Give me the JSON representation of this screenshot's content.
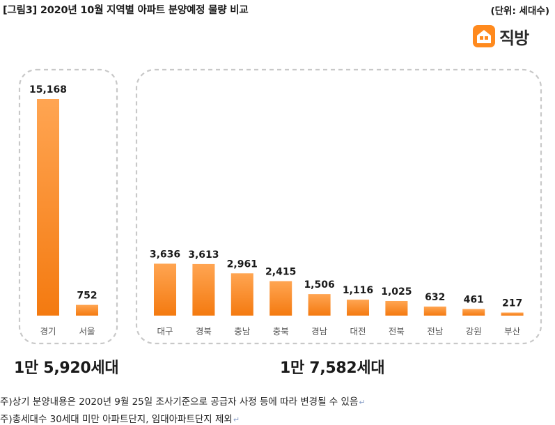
{
  "header": {
    "title": "[그림3] 2020년 10월 지역별 아파트 분양예정 물량 비교",
    "unit": "(단위: 세대수)"
  },
  "logo": {
    "brand": "직방",
    "icon": "house-icon"
  },
  "colors": {
    "bar_top": "#FFA552",
    "bar_bottom": "#F47A10",
    "group_border": "#c8c8c8",
    "label_text": "#555555"
  },
  "chart_data": {
    "type": "bar",
    "unit": "세대수",
    "groups": [
      {
        "categories": [
          "경기",
          "서울"
        ],
        "value_labels": [
          "15,168",
          "752"
        ],
        "values": [
          15168,
          752
        ],
        "total_label": "1만 5,920세대"
      },
      {
        "categories": [
          "대구",
          "경북",
          "충남",
          "충북",
          "경남",
          "대전",
          "전북",
          "전남",
          "강원",
          "부산"
        ],
        "value_labels": [
          "3,636",
          "3,613",
          "2,961",
          "2,415",
          "1,506",
          "1,116",
          "1,025",
          "632",
          "461",
          "217"
        ],
        "values": [
          3636,
          3613,
          2961,
          2415,
          1506,
          1116,
          1025,
          632,
          461,
          217
        ],
        "total_label": "1만 7,582세대"
      }
    ],
    "title": "",
    "xlabel": "",
    "ylabel": "",
    "legend": "none",
    "grid": false
  },
  "notes": [
    "주)상기 분양내용은 2020년 9월 25일 조사기준으로 공급자 사정 등에 따라 변경될 수 있음",
    "주)총세대수 30세대 미만 아파트단지, 임대아파트단지 제외"
  ],
  "note_return_symbol": "↵"
}
